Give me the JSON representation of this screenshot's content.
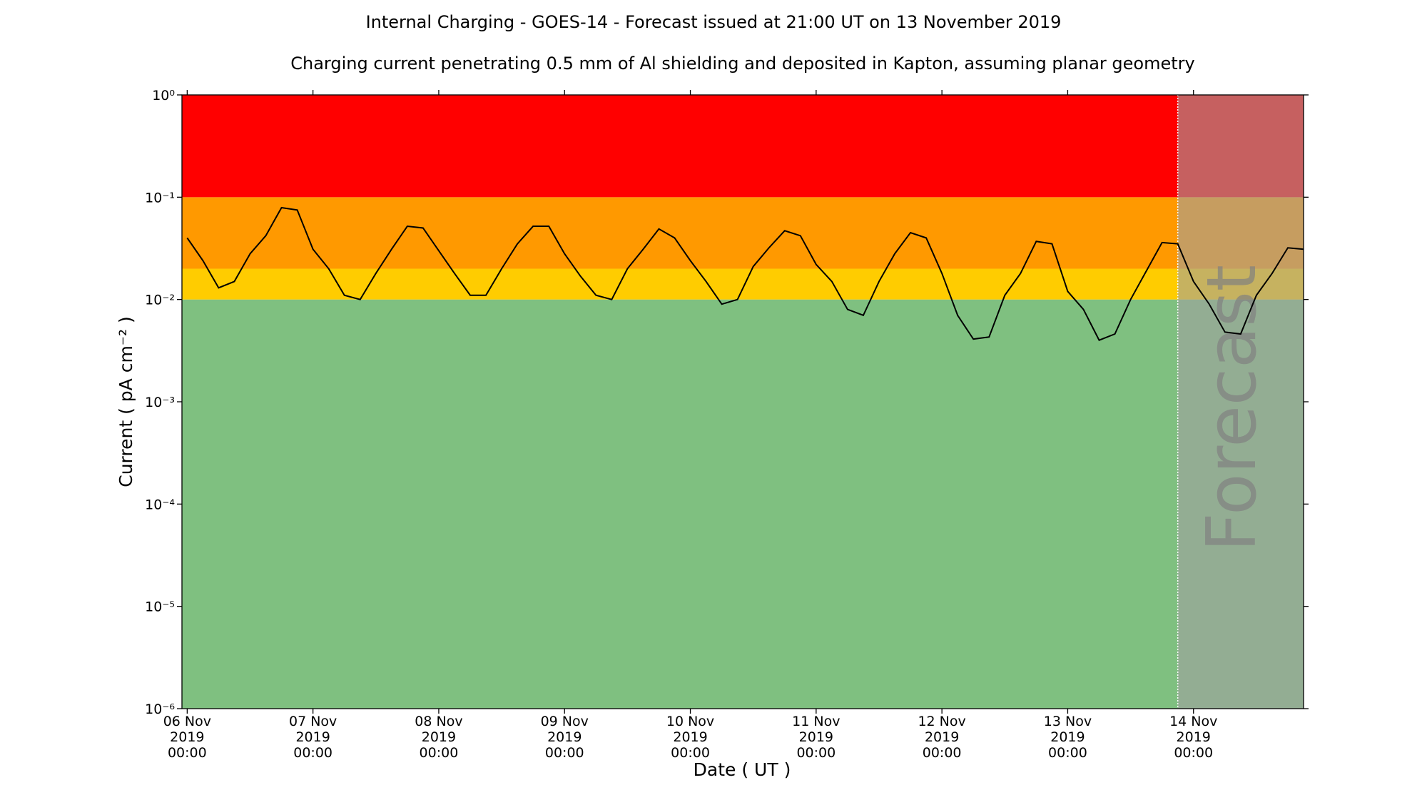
{
  "chart_data": {
    "type": "line",
    "title": "Internal Charging - GOES-14 - Forecast issued at 21:00 UT on 13 November 2019",
    "subtitle": "Charging current penetrating 0.5 mm of Al shielding and deposited in Kapton, assuming planar geometry",
    "xlabel": "Date ( UT )",
    "ylabel": "Current ( pA cm⁻² )",
    "log_y": true,
    "xlim": [
      "2019-11-05 23:00",
      "2019-11-14 21:00"
    ],
    "ylim": [
      1e-06,
      1
    ],
    "yticks": [
      {
        "value": 1e-06,
        "label": "10⁻⁶"
      },
      {
        "value": 1e-05,
        "label": "10⁻⁵"
      },
      {
        "value": 0.0001,
        "label": "10⁻⁴"
      },
      {
        "value": 0.001,
        "label": "10⁻³"
      },
      {
        "value": 0.01,
        "label": "10⁻²"
      },
      {
        "value": 0.1,
        "label": "10⁻¹"
      },
      {
        "value": 1,
        "label": "10⁰"
      }
    ],
    "xticks": [
      {
        "value": "2019-11-06 00:00",
        "label": [
          "06 Nov",
          "2019",
          "00:00"
        ]
      },
      {
        "value": "2019-11-07 00:00",
        "label": [
          "07 Nov",
          "2019",
          "00:00"
        ]
      },
      {
        "value": "2019-11-08 00:00",
        "label": [
          "08 Nov",
          "2019",
          "00:00"
        ]
      },
      {
        "value": "2019-11-09 00:00",
        "label": [
          "09 Nov",
          "2019",
          "00:00"
        ]
      },
      {
        "value": "2019-11-10 00:00",
        "label": [
          "10 Nov",
          "2019",
          "00:00"
        ]
      },
      {
        "value": "2019-11-11 00:00",
        "label": [
          "11 Nov",
          "2019",
          "00:00"
        ]
      },
      {
        "value": "2019-11-12 00:00",
        "label": [
          "12 Nov",
          "2019",
          "00:00"
        ]
      },
      {
        "value": "2019-11-13 00:00",
        "label": [
          "13 Nov",
          "2019",
          "00:00"
        ]
      },
      {
        "value": "2019-11-14 00:00",
        "label": [
          "14 Nov",
          "2019",
          "00:00"
        ]
      }
    ],
    "bands": [
      {
        "from": 1e-06,
        "to": 0.01,
        "color": "#7fc080"
      },
      {
        "from": 0.01,
        "to": 0.02,
        "color": "#ffcc00"
      },
      {
        "from": 0.02,
        "to": 0.1,
        "color": "#ff9900"
      },
      {
        "from": 0.1,
        "to": 1,
        "color": "#ff0000"
      }
    ],
    "forecast_start": "2019-11-13 21:00",
    "forecast_label": "Forecast",
    "forecast_color": "#a0a0a0",
    "x": [
      "2019-11-06 00:00",
      "2019-11-06 03:00",
      "2019-11-06 06:00",
      "2019-11-06 09:00",
      "2019-11-06 12:00",
      "2019-11-06 15:00",
      "2019-11-06 18:00",
      "2019-11-06 21:00",
      "2019-11-07 00:00",
      "2019-11-07 03:00",
      "2019-11-07 06:00",
      "2019-11-07 09:00",
      "2019-11-07 12:00",
      "2019-11-07 15:00",
      "2019-11-07 18:00",
      "2019-11-07 21:00",
      "2019-11-08 00:00",
      "2019-11-08 03:00",
      "2019-11-08 06:00",
      "2019-11-08 09:00",
      "2019-11-08 12:00",
      "2019-11-08 15:00",
      "2019-11-08 18:00",
      "2019-11-08 21:00",
      "2019-11-09 00:00",
      "2019-11-09 03:00",
      "2019-11-09 06:00",
      "2019-11-09 09:00",
      "2019-11-09 12:00",
      "2019-11-09 15:00",
      "2019-11-09 18:00",
      "2019-11-09 21:00",
      "2019-11-10 00:00",
      "2019-11-10 03:00",
      "2019-11-10 06:00",
      "2019-11-10 09:00",
      "2019-11-10 12:00",
      "2019-11-10 15:00",
      "2019-11-10 18:00",
      "2019-11-10 21:00",
      "2019-11-11 00:00",
      "2019-11-11 03:00",
      "2019-11-11 06:00",
      "2019-11-11 09:00",
      "2019-11-11 12:00",
      "2019-11-11 15:00",
      "2019-11-11 18:00",
      "2019-11-11 21:00",
      "2019-11-12 00:00",
      "2019-11-12 03:00",
      "2019-11-12 06:00",
      "2019-11-12 09:00",
      "2019-11-12 12:00",
      "2019-11-12 15:00",
      "2019-11-12 18:00",
      "2019-11-12 21:00",
      "2019-11-13 00:00",
      "2019-11-13 03:00",
      "2019-11-13 06:00",
      "2019-11-13 09:00",
      "2019-11-13 12:00",
      "2019-11-13 15:00",
      "2019-11-13 18:00",
      "2019-11-13 21:00",
      "2019-11-14 00:00",
      "2019-11-14 03:00",
      "2019-11-14 06:00",
      "2019-11-14 09:00",
      "2019-11-14 12:00",
      "2019-11-14 15:00",
      "2019-11-14 18:00",
      "2019-11-14 21:00"
    ],
    "series": [
      {
        "color": "#000000",
        "values": [
          0.04,
          0.024,
          0.013,
          0.015,
          0.028,
          0.042,
          0.079,
          0.075,
          0.031,
          0.02,
          0.011,
          0.01,
          0.018,
          0.031,
          0.052,
          0.05,
          0.03,
          0.018,
          0.011,
          0.011,
          0.02,
          0.035,
          0.052,
          0.052,
          0.028,
          0.017,
          0.011,
          0.01,
          0.02,
          0.031,
          0.049,
          0.04,
          0.024,
          0.015,
          0.009,
          0.01,
          0.021,
          0.032,
          0.047,
          0.042,
          0.022,
          0.015,
          0.008,
          0.007,
          0.015,
          0.028,
          0.045,
          0.04,
          0.018,
          0.007,
          0.0041,
          0.0043,
          0.011,
          0.018,
          0.037,
          0.035,
          0.012,
          0.008,
          0.004,
          0.0046,
          0.01,
          0.019,
          0.036,
          0.035,
          0.015,
          0.009,
          0.0048,
          0.0046,
          0.011,
          0.018,
          0.032,
          0.031
        ]
      }
    ]
  }
}
